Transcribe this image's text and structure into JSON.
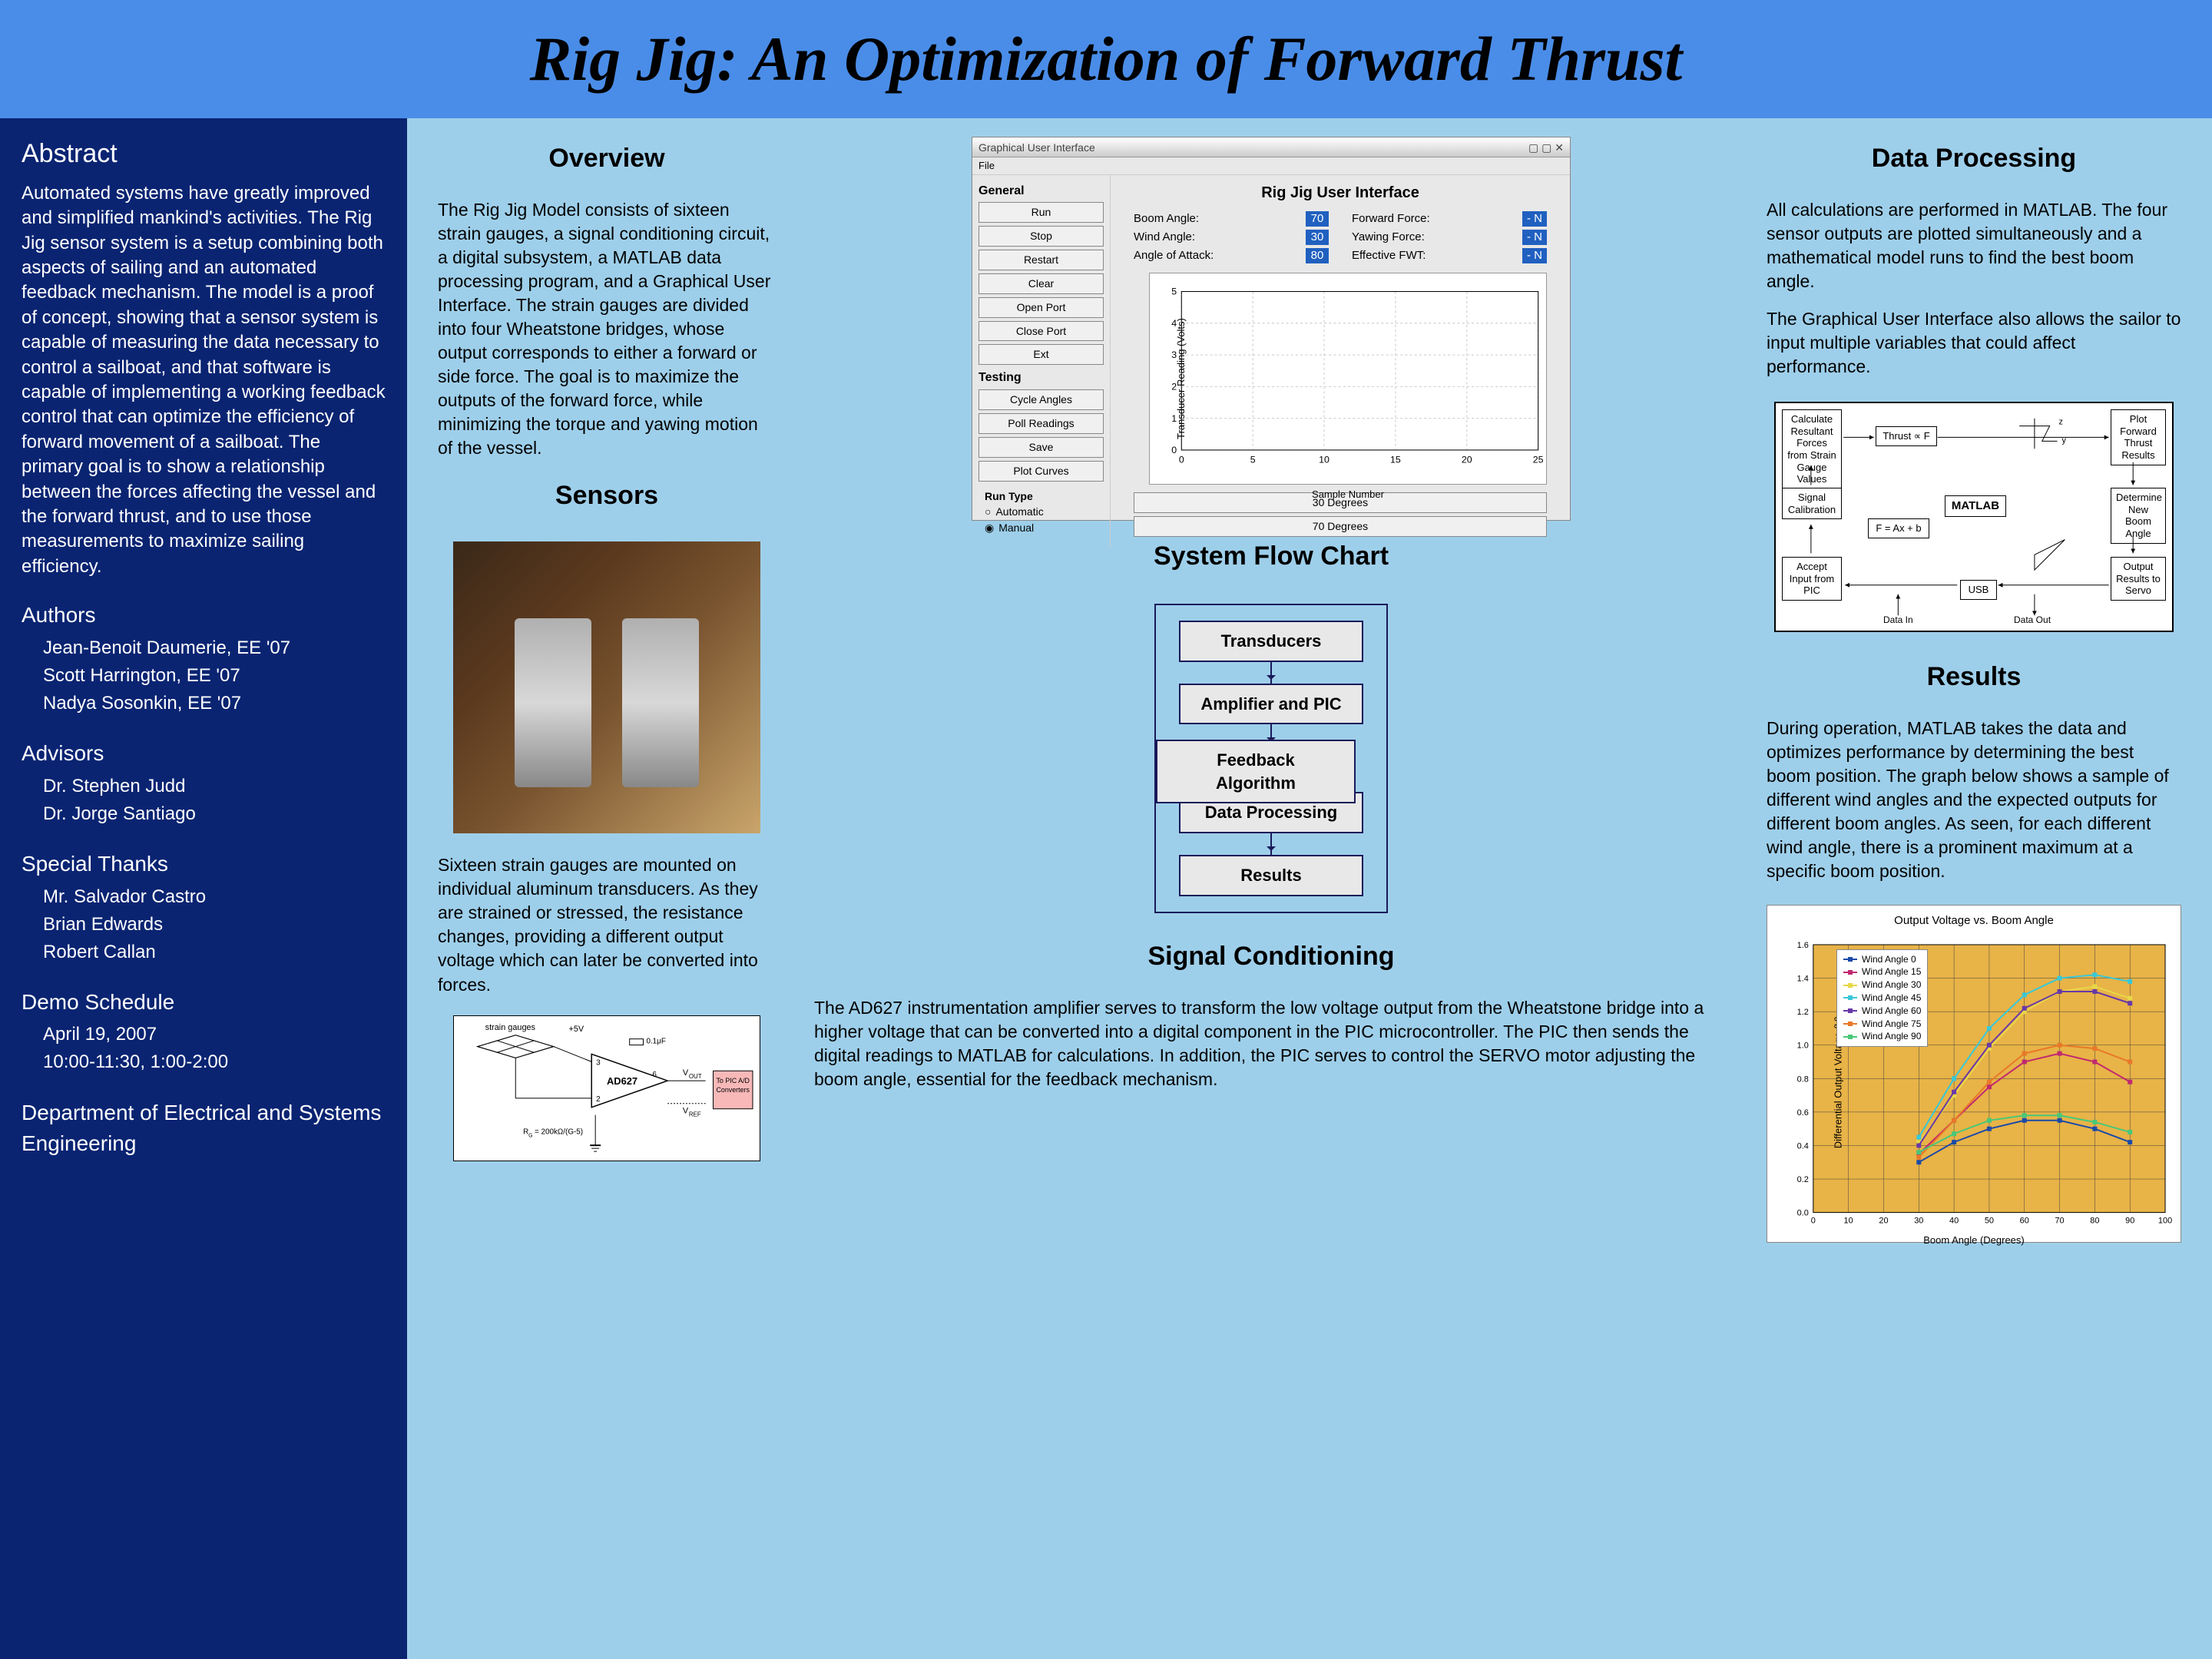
{
  "title": "Rig Jig: An Optimization of Forward Thrust",
  "colors": {
    "title_bg": "#4a8de8",
    "sidebar_bg": "#0a2472",
    "main_bg": "#9ecfea",
    "flow_border": "#1a1a5a"
  },
  "sidebar": {
    "abstract_heading": "Abstract",
    "abstract": "Automated systems have greatly improved and simplified mankind's activities. The Rig Jig sensor system is a setup combining both aspects of sailing and an automated feedback mechanism. The model is a proof of concept, showing that a sensor system is capable of measuring the data necessary to control a sailboat, and that software is capable of implementing a working feedback control that can optimize the efficiency of forward movement of a sailboat. The primary goal is to show a relationship between the forces affecting the vessel and the forward thrust, and to use those measurements to maximize sailing efficiency.",
    "authors_heading": "Authors",
    "authors": [
      "Jean-Benoit Daumerie, EE '07",
      "Scott Harrington, EE '07",
      "Nadya Sosonkin, EE '07"
    ],
    "advisors_heading": "Advisors",
    "advisors": [
      "Dr. Stephen Judd",
      "Dr. Jorge Santiago"
    ],
    "thanks_heading": "Special Thanks",
    "thanks": [
      "Mr. Salvador Castro",
      "Brian Edwards",
      "Robert Callan"
    ],
    "demo_heading": "Demo Schedule",
    "demo": [
      "April 19, 2007",
      "10:00-11:30, 1:00-2:00"
    ],
    "department": "Department of Electrical and Systems Engineering"
  },
  "overview": {
    "heading": "Overview",
    "text": "The Rig Jig Model consists of sixteen strain gauges, a signal conditioning circuit, a digital subsystem, a MATLAB data processing program, and a Graphical User Interface. The strain gauges are divided into four Wheatstone bridges, whose output corresponds to either a forward or side force. The goal is to maximize the outputs of the forward force, while minimizing the torque and yawing motion of the vessel."
  },
  "sensors": {
    "heading": "Sensors",
    "text": "Sixteen strain gauges are mounted on individual aluminum transducers. As they are strained or stressed, the resistance changes, providing a different output voltage which can later be converted into forces."
  },
  "gui": {
    "window_title": "Graphical User Interface",
    "title": "Rig Jig User Interface",
    "general_label": "General",
    "testing_label": "Testing",
    "buttons_general": [
      "Run",
      "Stop",
      "Restart",
      "Clear",
      "Open Port",
      "Close Port",
      "Ext"
    ],
    "buttons_testing": [
      "Cycle Angles",
      "Poll Readings",
      "Save",
      "Plot Curves"
    ],
    "readings": [
      {
        "label": "Boom Angle:",
        "value": "70"
      },
      {
        "label": "Forward Force:",
        "value": "-  N"
      },
      {
        "label": "Wind Angle:",
        "value": "30"
      },
      {
        "label": "Yawing Force:",
        "value": "-  N"
      },
      {
        "label": "Angle of Attack:",
        "value": "80"
      },
      {
        "label": "Effective FWT:",
        "value": "-  N"
      }
    ],
    "chart": {
      "ylabel": "Transducer Reading (Volts)",
      "xlabel": "Sample Number",
      "xlim": [
        0,
        25
      ],
      "xtick_step": 5,
      "ylim": [
        0,
        5
      ],
      "ytick_step": 1,
      "background": "#ffffff",
      "grid_color": "#cccccc"
    },
    "run_type_label": "Run Type",
    "run_type_options": [
      "Automatic",
      "Manual"
    ],
    "run_type_selects": [
      "30 Degrees",
      "70 Degrees"
    ]
  },
  "flowchart": {
    "heading": "System Flow Chart",
    "nodes": [
      "Transducers",
      "Amplifier and PIC",
      "Data Processing",
      "Results"
    ],
    "side_node": "Feedback Algorithm",
    "node_bg": "#e8e8e8",
    "node_border": "#1a1a5a"
  },
  "signal": {
    "heading": "Signal Conditioning",
    "text": "The AD627 instrumentation amplifier serves to transform the low voltage output from the Wheatstone bridge into a higher voltage that can be converted into a digital component in the PIC microcontroller. The PIC then sends the digital readings to MATLAB for calculations. In addition, the PIC serves to control the SERVO motor adjusting the boom angle, essential for the feedback mechanism."
  },
  "data_processing": {
    "heading": "Data Processing",
    "text1": "All calculations are performed in MATLAB. The four sensor outputs are plotted simultaneously and a mathematical model runs to find the best boom angle.",
    "text2": "The Graphical User Interface also allows the sailor to input multiple variables that could affect performance.",
    "matlab_boxes": {
      "calc": "Calculate Resultant Forces from Strain Gauge Values",
      "thrust": "Thrust ∝ F",
      "plot": "Plot Forward Thrust Results",
      "sigcal": "Signal Calibration",
      "matlab": "MATLAB",
      "formula": "F = Ax + b",
      "determine": "Determine New Boom Angle",
      "accept": "Accept Input from PIC",
      "usb": "USB",
      "output": "Output Results to Servo",
      "data_in": "Data In",
      "data_out": "Data Out"
    }
  },
  "results": {
    "heading": "Results",
    "text": "During operation, MATLAB takes the data and optimizes performance by determining the best boom position. The graph below shows a sample of different wind angles and the expected outputs for different boom angles. As seen, for each different wind angle, there is a prominent maximum at a specific boom position.",
    "chart": {
      "title": "Output Voltage vs. Boom Angle",
      "xlabel": "Boom Angle (Degrees)",
      "ylabel": "Differential Output Voltage (V)",
      "xlim": [
        0,
        100
      ],
      "xtick_step": 10,
      "ylim": [
        0,
        1.6
      ],
      "ytick_step": 0.2,
      "background": "#e8b347",
      "grid_color": "#404040",
      "series": [
        {
          "name": "Wind Angle 0",
          "color": "#1a4aa8",
          "marker": "diamond",
          "x": [
            30,
            40,
            50,
            60,
            70,
            80,
            90
          ],
          "y": [
            0.3,
            0.42,
            0.5,
            0.55,
            0.55,
            0.5,
            0.42
          ]
        },
        {
          "name": "Wind Angle 15",
          "color": "#c02870",
          "marker": "square",
          "x": [
            30,
            40,
            50,
            60,
            70,
            80,
            90
          ],
          "y": [
            0.35,
            0.55,
            0.75,
            0.9,
            0.95,
            0.9,
            0.78
          ]
        },
        {
          "name": "Wind Angle 30",
          "color": "#e8d848",
          "marker": "triangle",
          "x": [
            30,
            40,
            50,
            60,
            70,
            80,
            90
          ],
          "y": [
            0.42,
            0.7,
            0.98,
            1.2,
            1.32,
            1.35,
            1.28
          ]
        },
        {
          "name": "Wind Angle 45",
          "color": "#38c8d8",
          "marker": "x",
          "x": [
            30,
            40,
            50,
            60,
            70,
            80,
            90
          ],
          "y": [
            0.45,
            0.8,
            1.1,
            1.3,
            1.4,
            1.42,
            1.38
          ]
        },
        {
          "name": "Wind Angle 60",
          "color": "#6838a8",
          "marker": "star",
          "x": [
            30,
            40,
            50,
            60,
            70,
            80,
            90
          ],
          "y": [
            0.4,
            0.72,
            1.0,
            1.22,
            1.32,
            1.32,
            1.25
          ]
        },
        {
          "name": "Wind Angle 75",
          "color": "#e87828",
          "marker": "circle",
          "x": [
            30,
            40,
            50,
            60,
            70,
            80,
            90
          ],
          "y": [
            0.33,
            0.55,
            0.78,
            0.95,
            1.0,
            0.98,
            0.9
          ]
        },
        {
          "name": "Wind Angle 90",
          "color": "#48c878",
          "marker": "plus",
          "x": [
            30,
            40,
            50,
            60,
            70,
            80,
            90
          ],
          "y": [
            0.36,
            0.47,
            0.55,
            0.58,
            0.58,
            0.54,
            0.48
          ]
        }
      ]
    }
  },
  "circuit": {
    "labels": [
      "strain gauges",
      "+5V",
      "AD627",
      "V_OUT",
      "V_REF",
      "To PIC A/D Converters",
      "0.1μF",
      "R_G = 200kΩ/(G-5)"
    ]
  }
}
